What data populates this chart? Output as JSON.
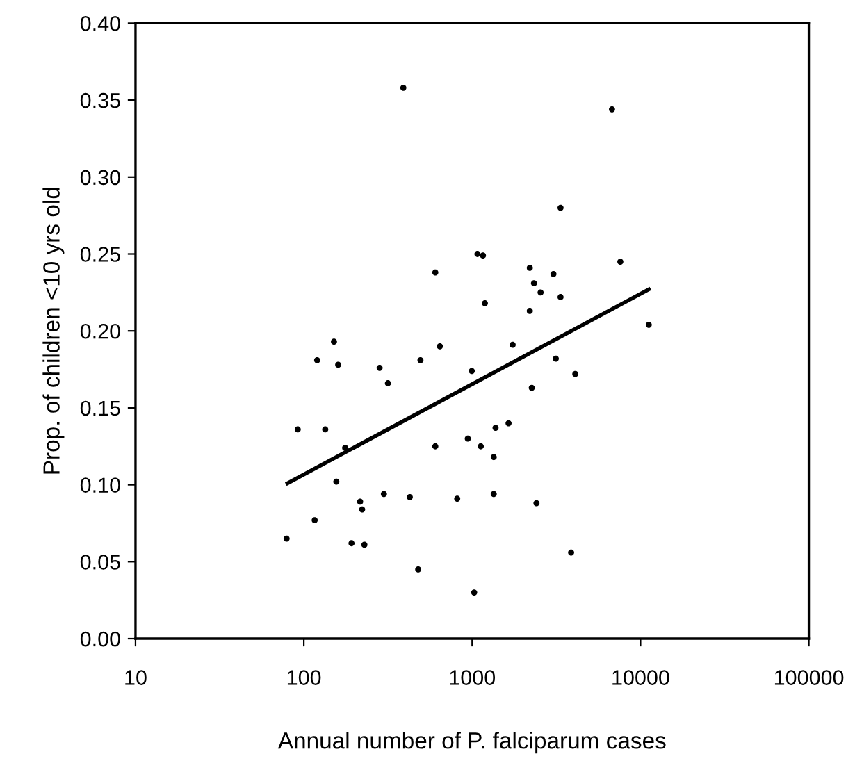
{
  "chart_data": {
    "type": "scatter",
    "xlabel": "Annual number of P. falciparum cases",
    "ylabel": "Prop. of children <10 yrs old",
    "log": "x",
    "grid": false,
    "legend": false,
    "marker": "circle",
    "xlim": [
      10,
      100000
    ],
    "xticks": [
      10,
      100,
      1000,
      10000,
      100000
    ],
    "ylim": [
      0,
      0.4
    ],
    "yticks": [
      {
        "value": 0,
        "label": "0.00"
      },
      {
        "value": 0.05,
        "label": "0.05"
      },
      {
        "value": 0.1,
        "label": "0.10"
      },
      {
        "value": 0.15,
        "label": "0.15"
      },
      {
        "value": 0.2,
        "label": "0.20"
      },
      {
        "value": 0.25,
        "label": "0.25"
      },
      {
        "value": 0.3,
        "label": "0.30"
      },
      {
        "value": 0.35,
        "label": "0.35"
      },
      {
        "value": 0.4,
        "label": "0.40"
      }
    ],
    "series": [
      {
        "color": "#000000",
        "x": [
          390,
          604,
          120,
          151,
          160,
          282,
          316,
          493,
          643,
          6770,
          3350,
          1075,
          1159,
          7590,
          2200,
          3040,
          2330,
          2550,
          3350,
          1190,
          2200,
          11200,
          1740,
          995,
          3140,
          4100,
          2260,
          92,
          134,
          176,
          156,
          216,
          222,
          299,
          426,
          116,
          79,
          192,
          229,
          478,
          604,
          942,
          1125,
          1377,
          1645,
          1343,
          815,
          1343,
          2410,
          3870,
          1028
        ],
        "values": [
          0.358,
          0.238,
          0.181,
          0.193,
          0.178,
          0.176,
          0.166,
          0.181,
          0.19,
          0.344,
          0.28,
          0.25,
          0.249,
          0.245,
          0.241,
          0.237,
          0.231,
          0.225,
          0.222,
          0.218,
          0.213,
          0.204,
          0.191,
          0.174,
          0.182,
          0.172,
          0.163,
          0.136,
          0.136,
          0.124,
          0.102,
          0.089,
          0.084,
          0.094,
          0.092,
          0.077,
          0.065,
          0.062,
          0.061,
          0.045,
          0.125,
          0.13,
          0.125,
          0.137,
          0.14,
          0.118,
          0.091,
          0.094,
          0.088,
          0.056,
          0.03
        ]
      },
      {
        "type": "line",
        "color": "#000000",
        "marker": "none",
        "line_style": "solid",
        "x": [
          80,
          11200
        ],
        "values": [
          0.101,
          0.227
        ]
      }
    ]
  }
}
